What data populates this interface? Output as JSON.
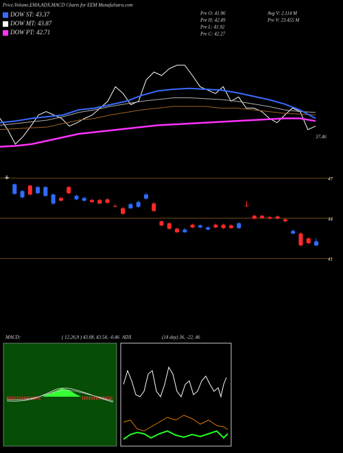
{
  "header": {
    "title": "Price,Volume,EMA,ADX,MACD Charts for EEM MunafaSutra.com"
  },
  "legend": [
    {
      "label": "DOW ST: 43.37",
      "color": "#3a6bff"
    },
    {
      "label": "DOW MT: 43.87",
      "color": "#ffffff"
    },
    {
      "label": "DOW PT: 42.71",
      "color": "#ff33ff"
    }
  ],
  "stats": {
    "left": [
      "Pre  O: 41.96",
      "Pre  H: 42.49",
      "Pre  L: 41.92",
      "Pre  C: 42.27"
    ],
    "right": [
      "Avg V: 2.114  M",
      "Pre  V: 23.455  M"
    ]
  },
  "ema_panel": {
    "ylim": [
      0,
      100
    ],
    "end_label": 37.46,
    "series": [
      {
        "color": "#ffffff",
        "values": [
          38,
          25,
          8,
          17,
          29,
          42,
          46,
          42,
          38,
          29,
          33,
          38,
          42,
          50,
          58,
          75,
          67,
          54,
          58,
          83,
          92,
          88,
          96,
          100,
          100,
          88,
          75,
          71,
          67,
          75,
          58,
          63,
          50,
          50,
          46,
          38,
          33,
          42,
          50,
          46,
          25,
          29
        ]
      },
      {
        "color": "#b0b0b0",
        "values": [
          30,
          32,
          34,
          36,
          40,
          45,
          48,
          52,
          55,
          58,
          60,
          62,
          62,
          61,
          60,
          58,
          55,
          52,
          48,
          46,
          45
        ]
      },
      {
        "color": "#a0622a",
        "values": [
          25,
          26,
          27,
          28,
          32,
          36,
          38,
          42,
          45,
          48,
          50,
          52,
          52,
          52,
          50,
          50,
          48,
          46,
          44,
          43,
          42
        ]
      },
      {
        "color": "#3a6bff",
        "values": [
          33,
          35,
          38,
          40,
          42,
          48,
          50,
          54,
          58,
          65,
          70,
          72,
          73,
          72,
          71,
          68,
          64,
          60,
          55,
          48,
          38
        ]
      },
      {
        "color": "#ff33ff",
        "values": [
          5,
          6,
          8,
          12,
          16,
          20,
          22,
          24,
          26,
          28,
          30,
          31,
          32,
          33,
          34,
          35,
          36,
          37,
          38,
          38,
          35
        ]
      }
    ]
  },
  "price_panel": {
    "ylim": [
      40.3,
      48
    ],
    "levels": [
      47,
      44,
      41
    ],
    "candles": [
      [
        47.05,
        47.2,
        46.9,
        47.05
      ],
      [
        45.82,
        46.6,
        45.75,
        46.54
      ],
      [
        45.56,
        46.1,
        45.5,
        46.03
      ],
      [
        46.44,
        46.5,
        45.7,
        45.77
      ],
      [
        45.87,
        46.4,
        45.8,
        46.33
      ],
      [
        45.67,
        46.4,
        45.6,
        46.33
      ],
      [
        45.1,
        45.85,
        45.0,
        45.77
      ],
      [
        45.51,
        45.6,
        45.25,
        45.31
      ],
      [
        46.33,
        46.4,
        45.8,
        45.87
      ],
      [
        45.41,
        45.75,
        45.35,
        45.67
      ],
      [
        45.31,
        45.6,
        45.25,
        45.51
      ],
      [
        45.36,
        45.45,
        45.15,
        45.21
      ],
      [
        45.36,
        45.45,
        45.05,
        45.1
      ],
      [
        45.41,
        45.5,
        45.1,
        45.15
      ],
      [
        44.92,
        45.05,
        44.8,
        44.9
      ],
      [
        44.74,
        44.85,
        44.25,
        44.33
      ],
      [
        44.74,
        45.15,
        44.7,
        45.05
      ],
      [
        44.85,
        45.3,
        44.8,
        45.21
      ],
      [
        45.46,
        45.9,
        45.4,
        45.77
      ],
      [
        45.1,
        45.2,
        44.5,
        44.54
      ],
      [
        43.77,
        43.85,
        43.4,
        43.46
      ],
      [
        43.62,
        43.7,
        43.15,
        43.21
      ],
      [
        43.21,
        43.3,
        42.9,
        42.95
      ],
      [
        42.95,
        43.25,
        42.9,
        43.15
      ],
      [
        43.51,
        43.6,
        43.25,
        43.31
      ],
      [
        43.31,
        43.55,
        43.25,
        43.46
      ],
      [
        43.15,
        43.4,
        43.1,
        43.31
      ],
      [
        43.51,
        43.6,
        43.25,
        43.31
      ],
      [
        43.51,
        43.6,
        43.2,
        43.26
      ],
      [
        43.46,
        43.55,
        43.2,
        43.26
      ],
      [
        43.26,
        43.7,
        43.2,
        43.62
      ],
      [
        44.95,
        45.3,
        44.85,
        44.9
      ],
      [
        44.18,
        44.25,
        43.9,
        43.97
      ],
      [
        44.18,
        44.25,
        43.95,
        44.03
      ],
      [
        44.08,
        44.15,
        43.9,
        43.97
      ],
      [
        44.13,
        44.2,
        43.9,
        43.97
      ],
      [
        43.92,
        44.0,
        43.7,
        43.77
      ],
      [
        42.85,
        43.15,
        42.8,
        43.05
      ],
      [
        42.85,
        42.95,
        41.9,
        41.97
      ],
      [
        42.49,
        42.55,
        42.05,
        42.13
      ],
      [
        41.96,
        42.49,
        41.92,
        42.27
      ]
    ]
  },
  "macd": {
    "label": "MACD:",
    "params": "( 12,26,9 ) 43.08, 43.54, -0.46"
  },
  "adx": {
    "label": "ADX",
    "params": "(14  day) 36, -22, 46"
  }
}
